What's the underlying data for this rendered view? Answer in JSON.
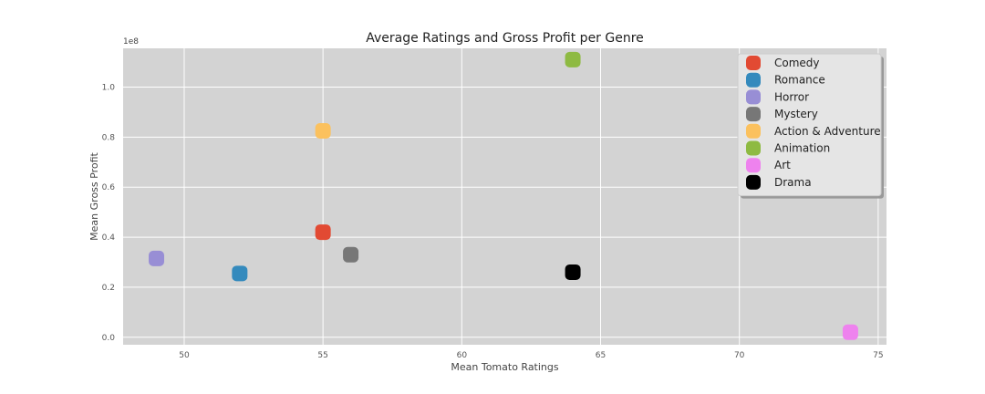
{
  "chart_data": {
    "type": "scatter",
    "title": "Average Ratings and Gross Profit per Genre",
    "xlabel": "Mean Tomato Ratings",
    "ylabel": "Mean Gross Profit",
    "y_offset_label": "1e8",
    "xlim": [
      47.8,
      75.3
    ],
    "ylim": [
      -0.03,
      1.155
    ],
    "x_ticks": [
      50,
      55,
      60,
      65,
      70,
      75
    ],
    "x_tick_labels": [
      "50",
      "55",
      "60",
      "65",
      "70",
      "75"
    ],
    "y_ticks": [
      0.0,
      0.2,
      0.4,
      0.6,
      0.8,
      1.0
    ],
    "y_tick_labels": [
      "0.0",
      "0.2",
      "0.4",
      "0.6",
      "0.8",
      "1.0"
    ],
    "grid": true,
    "legend_position": "top-right",
    "series": [
      {
        "name": "Comedy",
        "color": "#E24A33",
        "x": 55,
        "y": 0.42
      },
      {
        "name": "Romance",
        "color": "#348ABD",
        "x": 52,
        "y": 0.255
      },
      {
        "name": "Horror",
        "color": "#988ED5",
        "x": 49,
        "y": 0.315
      },
      {
        "name": "Mystery",
        "color": "#777777",
        "x": 56,
        "y": 0.33
      },
      {
        "name": "Action & Adventure",
        "color": "#FBC15E",
        "x": 55,
        "y": 0.825
      },
      {
        "name": "Animation",
        "color": "#8EBA42",
        "x": 64,
        "y": 1.11
      },
      {
        "name": "Art",
        "color": "#EE82EE",
        "x": 74,
        "y": 0.02
      },
      {
        "name": "Drama",
        "color": "#000000",
        "x": 64,
        "y": 0.26
      }
    ]
  }
}
